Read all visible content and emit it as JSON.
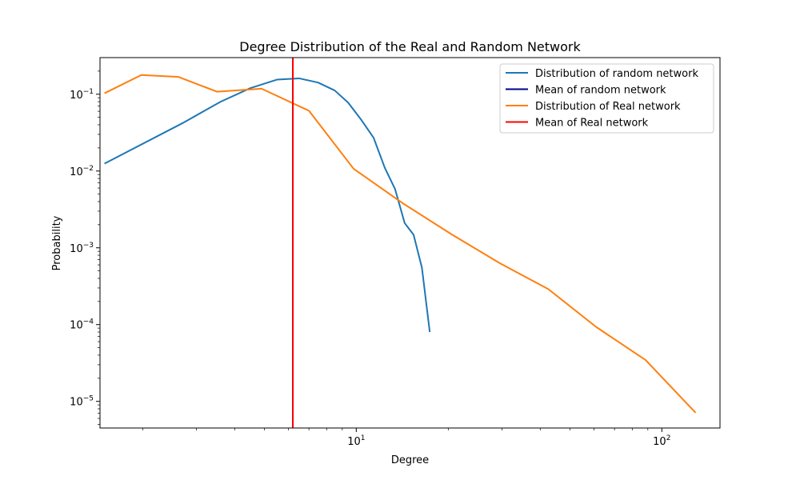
{
  "chart_data": {
    "type": "line",
    "title": "Degree Distribution of the Real and Random Network",
    "xlabel": "Degree",
    "ylabel": "Probability",
    "xscale": "log",
    "yscale": "log",
    "xlim": [
      1.45,
      155
    ],
    "ylim": [
      4.5e-06,
      0.3
    ],
    "xticks": [
      {
        "value": 10,
        "base": "10",
        "exp": "1"
      },
      {
        "value": 100,
        "base": "10",
        "exp": "2"
      }
    ],
    "yticks": [
      {
        "value": 1e-05,
        "base": "10",
        "exp": "−5"
      },
      {
        "value": 0.0001,
        "base": "10",
        "exp": "−4"
      },
      {
        "value": 0.001,
        "base": "10",
        "exp": "−3"
      },
      {
        "value": 0.01,
        "base": "10",
        "exp": "−2"
      },
      {
        "value": 0.1,
        "base": "10",
        "exp": "−1"
      }
    ],
    "legend_position": "top-right",
    "series": [
      {
        "name": "Distribution of random network",
        "color": "#1f77b4",
        "kind": "line",
        "points": [
          [
            1.5,
            0.0125
          ],
          [
            2.7,
            0.042
          ],
          [
            3.6,
            0.08
          ],
          [
            4.5,
            0.12
          ],
          [
            5.5,
            0.155
          ],
          [
            6.5,
            0.161
          ],
          [
            7.5,
            0.142
          ],
          [
            8.5,
            0.112
          ],
          [
            9.4,
            0.078
          ],
          [
            10.4,
            0.046
          ],
          [
            11.4,
            0.027
          ],
          [
            12.4,
            0.011
          ],
          [
            13.4,
            0.0058
          ],
          [
            14.4,
            0.0021
          ],
          [
            15.4,
            0.00148
          ],
          [
            16.4,
            0.00055
          ],
          [
            17.4,
            8e-05
          ]
        ]
      },
      {
        "name": "Mean of random network",
        "color": "#00008b",
        "kind": "vline",
        "x": 6.2
      },
      {
        "name": "Distribution of Real network",
        "color": "#ff7f0e",
        "kind": "line",
        "points": [
          [
            1.5,
            0.103
          ],
          [
            1.98,
            0.178
          ],
          [
            2.62,
            0.168
          ],
          [
            3.5,
            0.108
          ],
          [
            4.9,
            0.118
          ],
          [
            7.0,
            0.061
          ],
          [
            9.8,
            0.0107
          ],
          [
            14.2,
            0.0038
          ],
          [
            20.5,
            0.0015
          ],
          [
            29.5,
            0.00063
          ],
          [
            42.5,
            0.00029
          ],
          [
            61.0,
            9.3e-05
          ],
          [
            88.5,
            3.45e-05
          ],
          [
            129,
            7.1e-06
          ]
        ]
      },
      {
        "name": "Mean of Real network",
        "color": "#ff0000",
        "kind": "vline",
        "x": 6.2
      }
    ]
  }
}
